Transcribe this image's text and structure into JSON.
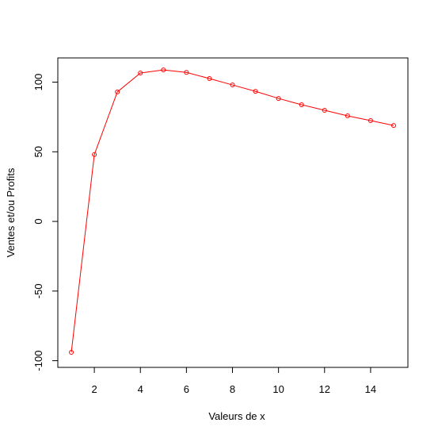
{
  "chart_data": {
    "type": "line",
    "xlabel": "Valeurs de x",
    "ylabel": "Ventes et/ou Profits",
    "x": [
      1,
      2,
      3,
      4,
      5,
      6,
      7,
      8,
      9,
      10,
      11,
      12,
      13,
      14,
      15
    ],
    "values": [
      -94,
      48,
      93,
      106.6,
      108.8,
      107,
      102.6,
      98,
      93.4,
      88.3,
      83.8,
      79.8,
      75.8,
      72.4,
      68.9
    ],
    "color": "#ff0000",
    "xlim": [
      0.414,
      15.62
    ],
    "ylim": [
      -104.8,
      117.4
    ],
    "xticks": [
      2,
      4,
      6,
      8,
      10,
      12,
      14
    ],
    "yticks": [
      -100,
      -50,
      0,
      50,
      100
    ]
  }
}
